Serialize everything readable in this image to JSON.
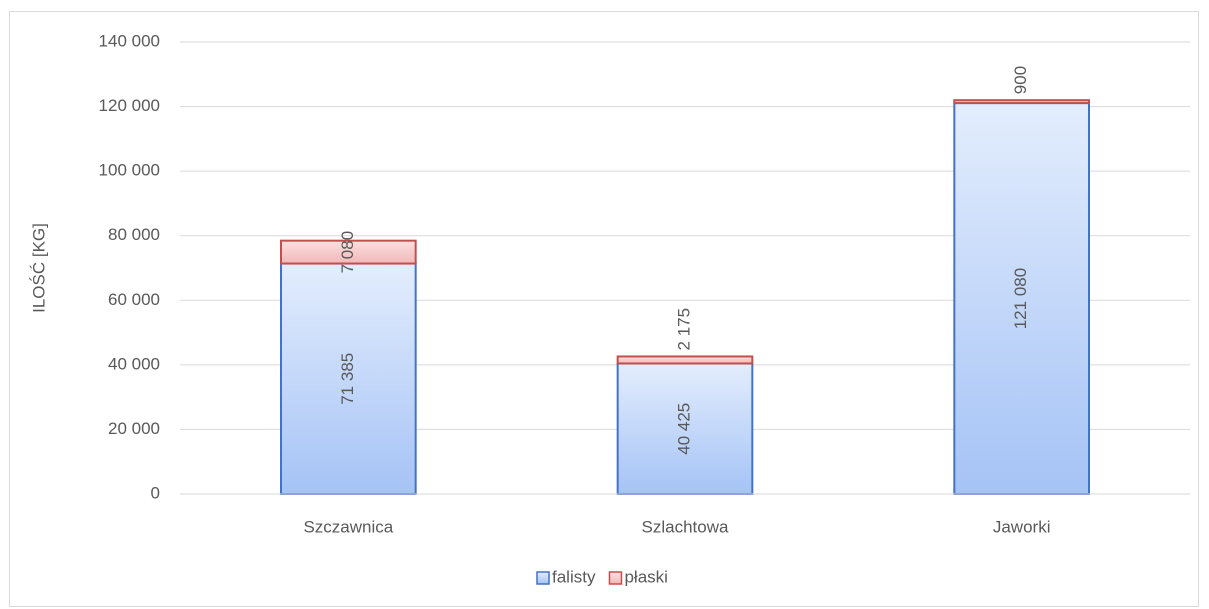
{
  "chart_data": {
    "type": "stacked_bar",
    "y_label": "ILOŚĆ [KG]",
    "categories": [
      "Szczawnica",
      "Szlachtowa",
      "Jaworki"
    ],
    "series": [
      {
        "name": "falisty",
        "color": "#4472c4",
        "values": [
          71385,
          40425,
          121080
        ],
        "value_labels": [
          "71 385",
          "40 425",
          "121 080"
        ]
      },
      {
        "name": "płaski",
        "color": "#c0504d",
        "values": [
          7080,
          2175,
          900
        ],
        "value_labels": [
          "7 080",
          "2 175",
          "900"
        ]
      }
    ],
    "ylim": [
      0,
      140000
    ],
    "yticks": [
      {
        "value": 0,
        "label": "0"
      },
      {
        "value": 20000,
        "label": "20 000"
      },
      {
        "value": 40000,
        "label": "40 000"
      },
      {
        "value": 60000,
        "label": "60 000"
      },
      {
        "value": 80000,
        "label": "80 000"
      },
      {
        "value": 100000,
        "label": "100 000"
      },
      {
        "value": 120000,
        "label": "120 000"
      },
      {
        "value": 140000,
        "label": "140 000"
      }
    ],
    "grid": true,
    "legend": "bottom"
  }
}
